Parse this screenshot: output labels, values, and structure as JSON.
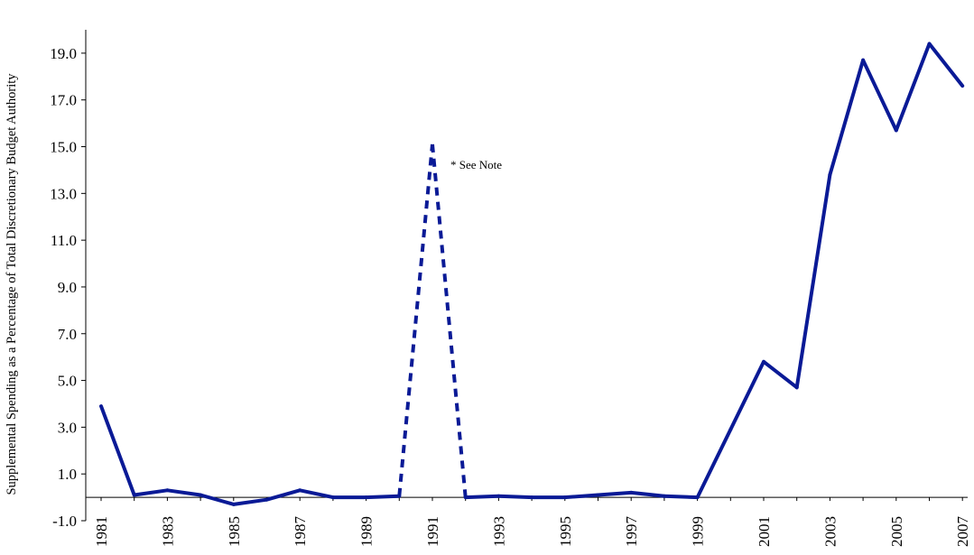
{
  "chart_data": {
    "type": "line",
    "title": "",
    "xlabel": "",
    "ylabel": "Supplemental Spending as a Percentage of Total Discretionary Budget Authority",
    "ylim": [
      -1.0,
      20.0
    ],
    "y_ticks": [
      "-1.0",
      "1.0",
      "3.0",
      "5.0",
      "7.0",
      "9.0",
      "11.0",
      "13.0",
      "15.0",
      "17.0",
      "19.0"
    ],
    "x_ticks": [
      "1981",
      "1983",
      "1985",
      "1987",
      "1989",
      "1991",
      "1993",
      "1995",
      "1997",
      "1999",
      "2001",
      "2003",
      "2005",
      "2007"
    ],
    "grid": false,
    "line_color": "#0a1a96",
    "x": [
      1981,
      1982,
      1983,
      1984,
      1985,
      1986,
      1987,
      1988,
      1989,
      1990,
      1991,
      1992,
      1993,
      1994,
      1995,
      1996,
      1997,
      1998,
      1999,
      2000,
      2001,
      2002,
      2003,
      2004,
      2005,
      2006,
      2007
    ],
    "series": [
      {
        "values": [
          3.9,
          0.1,
          0.3,
          0.1,
          -0.3,
          -0.1,
          0.3,
          0.0,
          0.0,
          0.05,
          15.1,
          0.0,
          0.05,
          0.0,
          0.0,
          0.1,
          0.2,
          0.05,
          0.0,
          2.9,
          5.8,
          4.7,
          13.8,
          18.7,
          15.7,
          19.4,
          17.6
        ],
        "dashed_segments": [
          [
            1990,
            1991
          ],
          [
            1991,
            1992
          ]
        ]
      }
    ],
    "annotations": [
      {
        "text": "* See Note",
        "x": 1991,
        "y": 15.1
      }
    ]
  }
}
